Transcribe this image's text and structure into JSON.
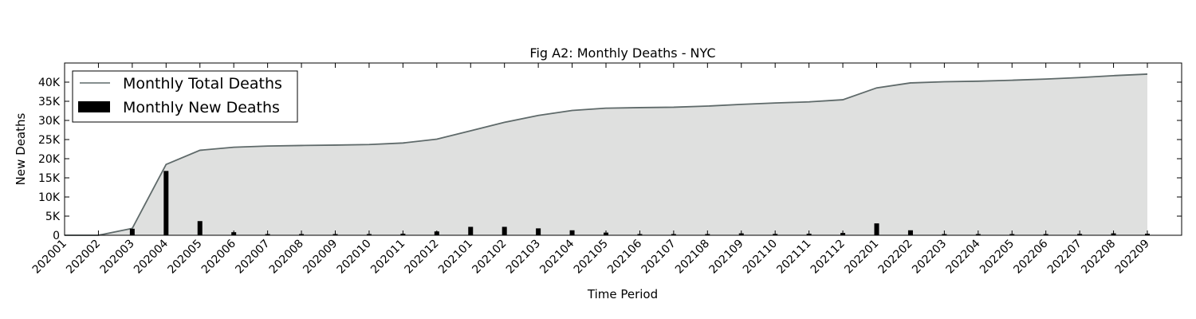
{
  "colors": {
    "area_fill": "#dfe0df",
    "total_line": "#5f6a6a",
    "bar": "#000000",
    "axis": "#000000"
  },
  "chart_data": {
    "type": "bar",
    "title": "Fig A2: Monthly Deaths - NYC",
    "xlabel": "Time Period",
    "ylabel": "New Deaths",
    "ylim": [
      0,
      45000
    ],
    "y_ticks": [
      0,
      5000,
      10000,
      15000,
      20000,
      25000,
      30000,
      35000,
      40000
    ],
    "y_tick_labels": [
      "0",
      "5K",
      "10K",
      "15K",
      "20K",
      "25K",
      "30K",
      "35K",
      "40K"
    ],
    "grid": false,
    "legend_position": "top-left",
    "categories": [
      "202001",
      "202002",
      "202003",
      "202004",
      "202005",
      "202006",
      "202007",
      "202008",
      "202009",
      "202010",
      "202011",
      "202012",
      "202101",
      "202102",
      "202103",
      "202104",
      "202105",
      "202106",
      "202107",
      "202108",
      "202109",
      "202110",
      "202111",
      "202112",
      "202201",
      "202202",
      "202203",
      "202204",
      "202205",
      "202206",
      "202207",
      "202208",
      "202209"
    ],
    "series": [
      {
        "name": "Monthly Total Deaths",
        "type": "area",
        "values": [
          0,
          0,
          1800,
          18500,
          22200,
          23000,
          23300,
          23450,
          23550,
          23700,
          24100,
          25100,
          27300,
          29500,
          31300,
          32600,
          33200,
          33350,
          33450,
          33750,
          34200,
          34550,
          34850,
          35400,
          38500,
          39800,
          40100,
          40250,
          40500,
          40800,
          41200,
          41700,
          42100
        ]
      },
      {
        "name": "Monthly New Deaths",
        "type": "bar",
        "values": [
          0,
          0,
          1700,
          16800,
          3700,
          800,
          300,
          150,
          120,
          150,
          400,
          1000,
          2200,
          2200,
          1800,
          1300,
          700,
          150,
          100,
          300,
          500,
          350,
          400,
          600,
          3100,
          1300,
          300,
          150,
          300,
          300,
          350,
          500,
          400
        ]
      }
    ]
  }
}
